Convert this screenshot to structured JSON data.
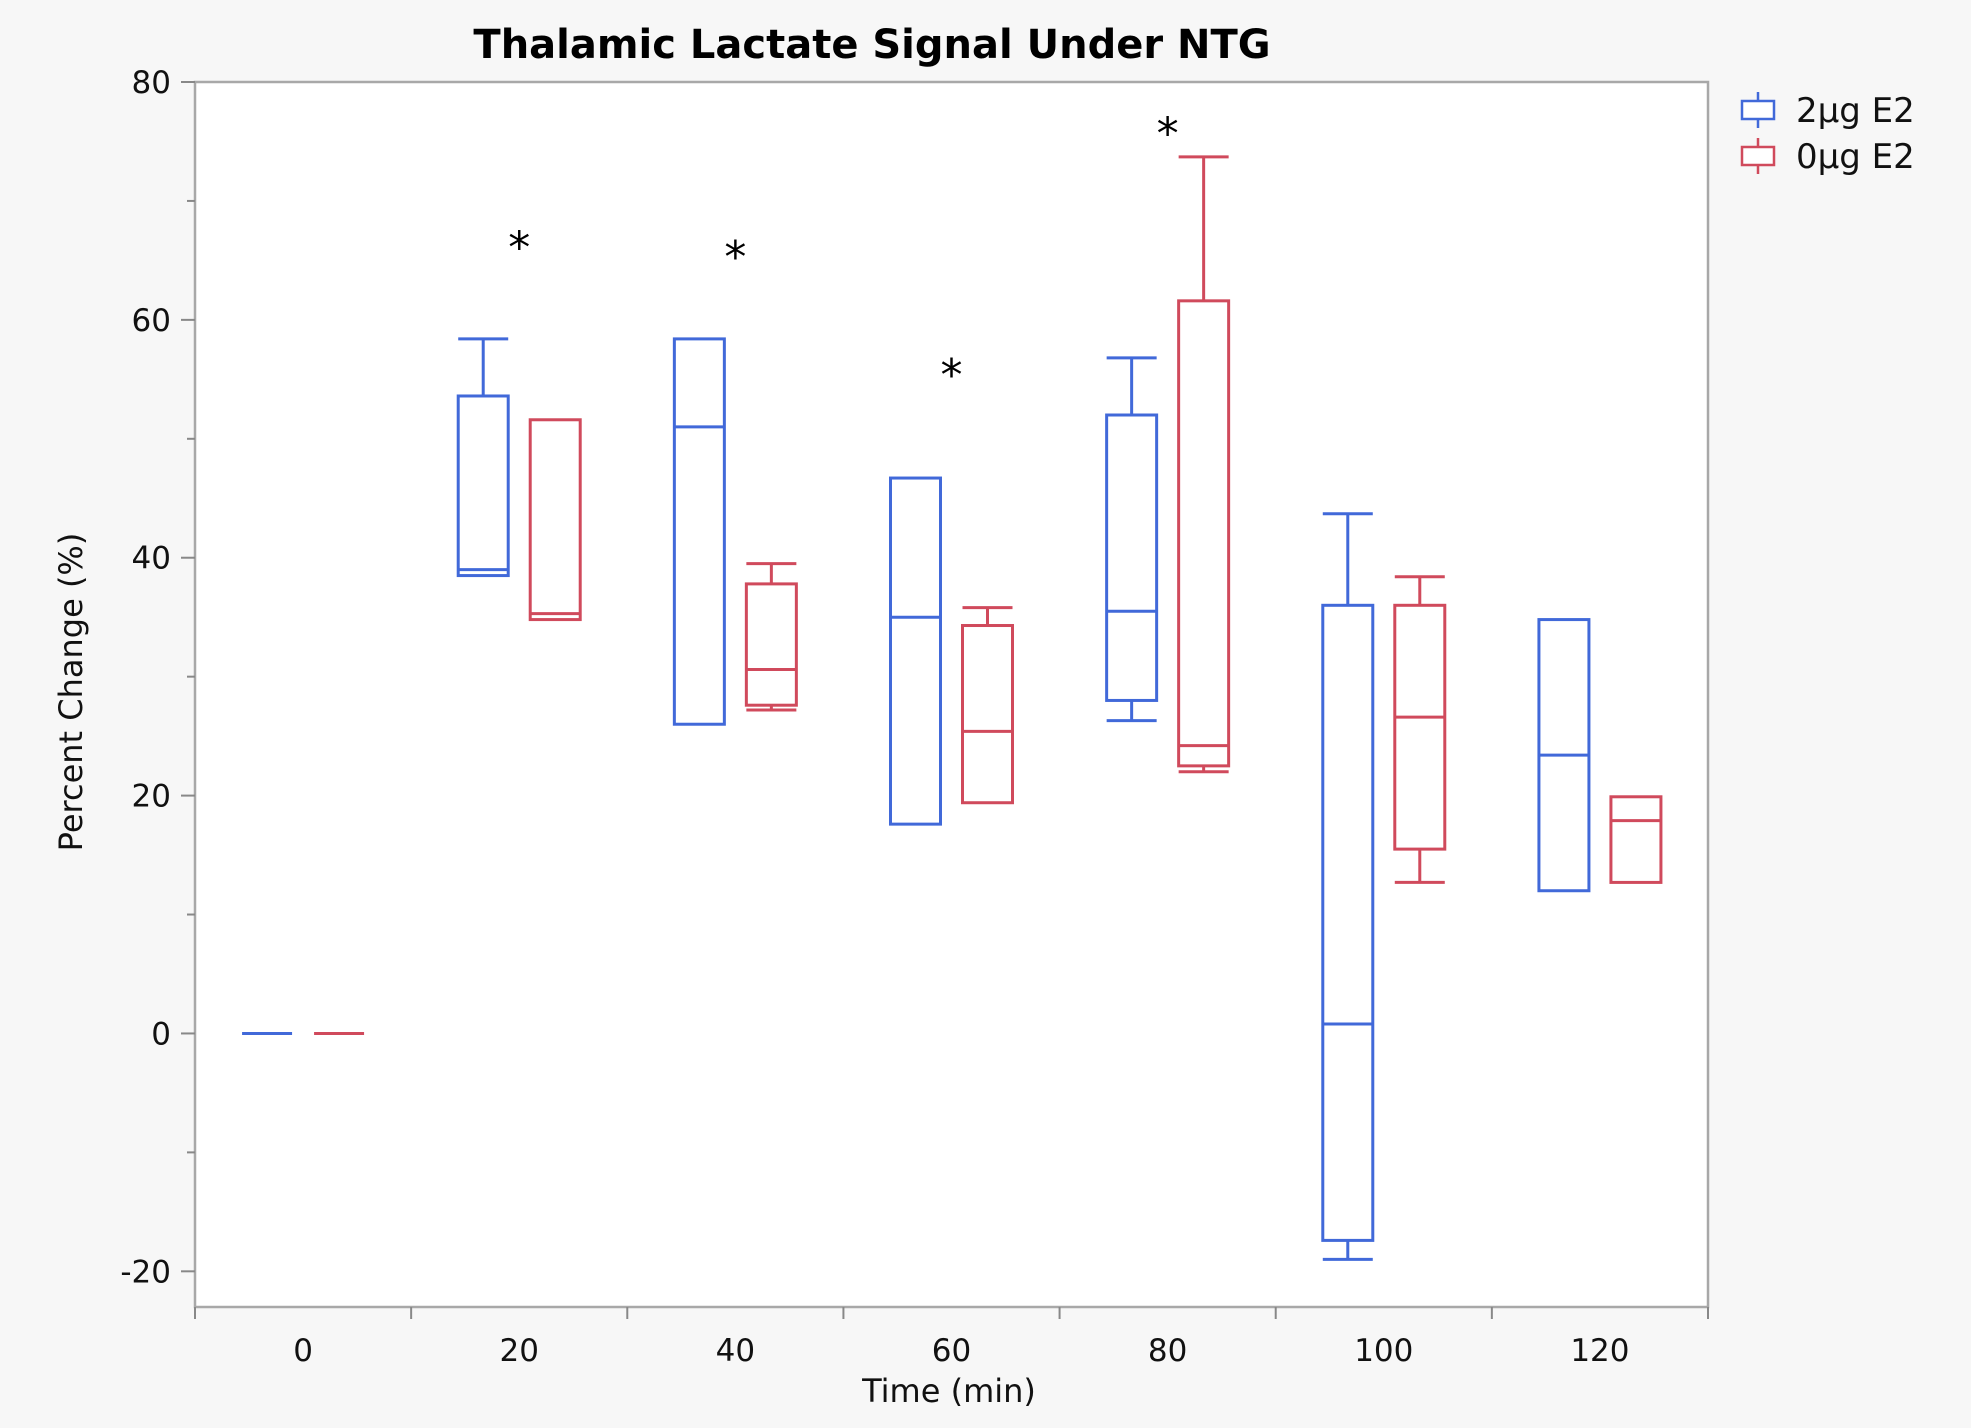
{
  "chart_data": {
    "type": "box",
    "title": "Thalamic Lactate Signal Under NTG",
    "xlabel": "Time (min)",
    "ylabel": "Percent Change (%)",
    "categories": [
      "0",
      "20",
      "40",
      "60",
      "80",
      "100",
      "120"
    ],
    "ylim": [
      -23,
      80
    ],
    "yticks": [
      -20,
      0,
      20,
      40,
      60,
      80
    ],
    "legend_position": "top-right",
    "series": [
      {
        "name": "2µg E2",
        "color": "#4169d9",
        "boxes": [
          {
            "min": 0,
            "q1": 0,
            "median": 0,
            "q3": 0,
            "max": 0
          },
          {
            "min": 38.5,
            "q1": 38.5,
            "median": 39,
            "q3": 53.6,
            "max": 58.4
          },
          {
            "min": 26,
            "q1": 26,
            "median": 51,
            "q3": 58.4,
            "max": 58.4
          },
          {
            "min": 17.6,
            "q1": 17.6,
            "median": 35,
            "q3": 46.7,
            "max": 46.7
          },
          {
            "min": 26.3,
            "q1": 28,
            "median": 35.5,
            "q3": 52,
            "max": 56.8
          },
          {
            "min": -19,
            "q1": -17.4,
            "median": 0.8,
            "q3": 36,
            "max": 43.7
          },
          {
            "min": 12,
            "q1": 12,
            "median": 23.4,
            "q3": 34.8,
            "max": 34.8
          }
        ]
      },
      {
        "name": "0µg E2",
        "color": "#d04a5c",
        "boxes": [
          {
            "min": 0,
            "q1": 0,
            "median": 0,
            "q3": 0,
            "max": 0
          },
          {
            "min": 34.8,
            "q1": 34.8,
            "median": 35.3,
            "q3": 51.6,
            "max": 51.6
          },
          {
            "min": 27.2,
            "q1": 27.6,
            "median": 30.6,
            "q3": 37.8,
            "max": 39.5
          },
          {
            "min": 19.4,
            "q1": 19.4,
            "median": 25.4,
            "q3": 34.3,
            "max": 35.8
          },
          {
            "min": 22,
            "q1": 22.5,
            "median": 24.2,
            "q3": 61.6,
            "max": 73.7
          },
          {
            "min": 12.7,
            "q1": 15.5,
            "median": 26.6,
            "q3": 36,
            "max": 38.4
          },
          {
            "min": 12.7,
            "q1": 12.7,
            "median": 17.9,
            "q3": 19.9,
            "max": 19.9
          }
        ]
      }
    ],
    "significance": [
      {
        "category": "20",
        "label": "*",
        "y": 67
      },
      {
        "category": "40",
        "label": "*",
        "y": 66.2
      },
      {
        "category": "60",
        "label": "*",
        "y": 56.3
      },
      {
        "category": "80",
        "label": "*",
        "y": 76.6
      }
    ]
  }
}
